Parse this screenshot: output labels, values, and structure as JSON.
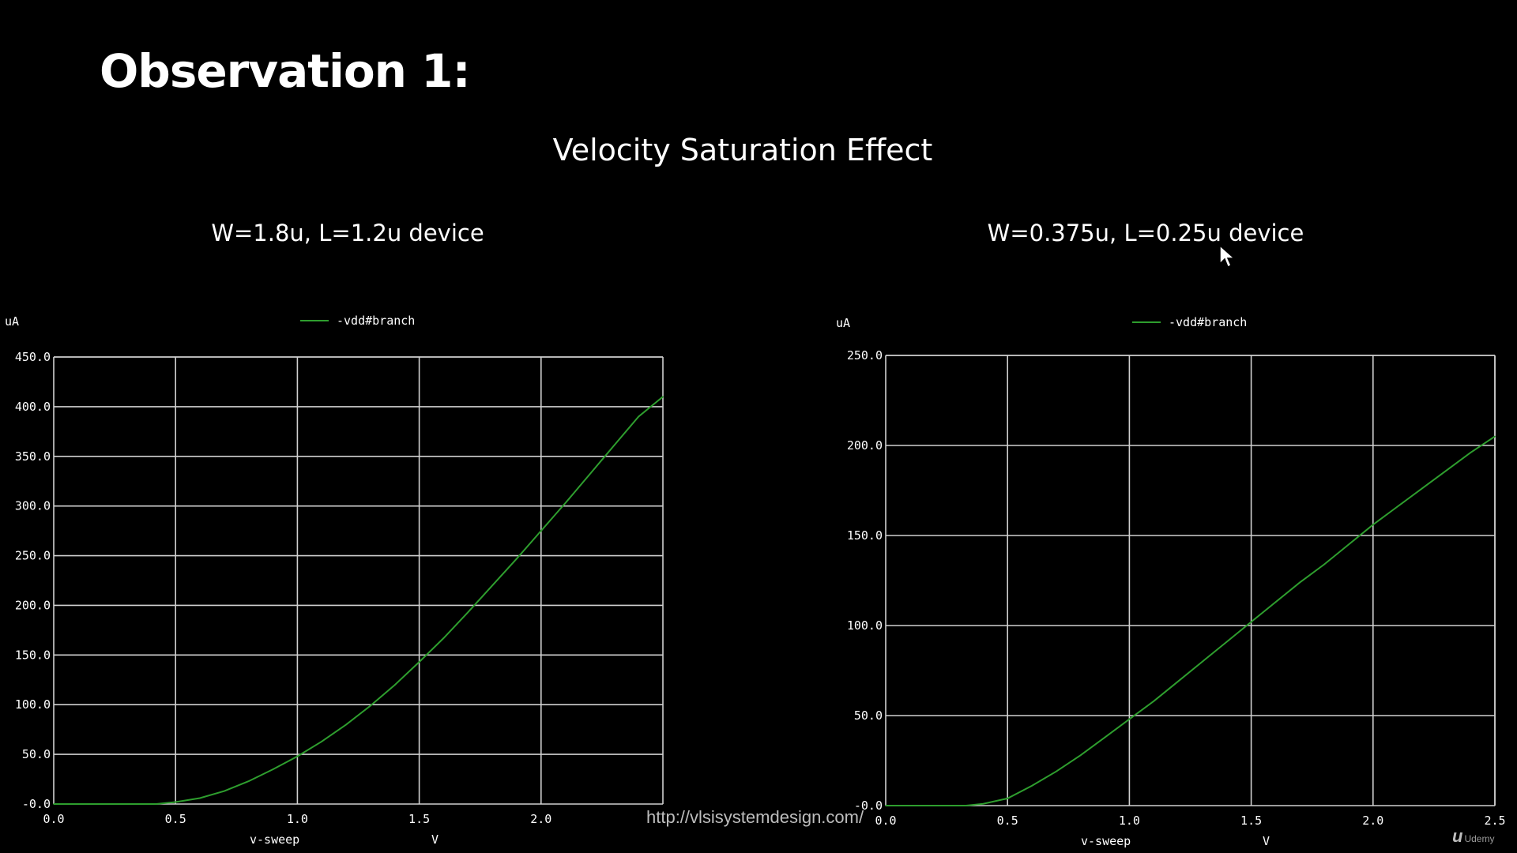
{
  "slide": {
    "title": "Observation 1:",
    "subtitle": "Velocity Saturation Effect",
    "watermark": "http://vlsisystemdesign.com/",
    "logo_text": "Udemy"
  },
  "colors": {
    "background": "#000000",
    "grid": "#d0d0d0",
    "trace": "#2e9e2e",
    "text": "#ffffff"
  },
  "chart_data": [
    {
      "type": "line",
      "title": "W=1.8u, L=1.2u device",
      "xlabel": "v-sweep",
      "xunit": "V",
      "yunit": "uA",
      "xlim": [
        0.0,
        2.5
      ],
      "ylim": [
        0.0,
        450.0
      ],
      "xticks": [
        "0.0",
        "0.5",
        "1.0",
        "1.5",
        "2.0"
      ],
      "yticks": [
        "-0.0",
        "50.0",
        "100.0",
        "150.0",
        "200.0",
        "250.0",
        "300.0",
        "350.0",
        "400.0",
        "450.0"
      ],
      "grid": true,
      "legend_position": "top",
      "series": [
        {
          "name": "-vdd#branch",
          "x": [
            0.0,
            0.3,
            0.42,
            0.5,
            0.6,
            0.7,
            0.8,
            0.9,
            1.0,
            1.1,
            1.2,
            1.3,
            1.4,
            1.5,
            1.6,
            1.7,
            1.8,
            1.9,
            2.0,
            2.1,
            2.2,
            2.3,
            2.4,
            2.5
          ],
          "y": [
            0,
            0,
            0,
            2,
            6,
            13,
            23,
            35,
            48,
            63,
            80,
            99,
            120,
            143,
            167,
            193,
            220,
            247,
            275,
            303,
            332,
            361,
            390,
            410
          ]
        }
      ]
    },
    {
      "type": "line",
      "title": "W=0.375u, L=0.25u device",
      "xlabel": "v-sweep",
      "xunit": "V",
      "yunit": "uA",
      "xlim": [
        0.0,
        2.5
      ],
      "ylim": [
        0.0,
        250.0
      ],
      "xticks": [
        "0.0",
        "0.5",
        "1.0",
        "1.5",
        "2.0",
        "2.5"
      ],
      "yticks": [
        "-0.0",
        "50.0",
        "100.0",
        "150.0",
        "200.0",
        "250.0"
      ],
      "grid": true,
      "legend_position": "top",
      "series": [
        {
          "name": "-vdd#branch",
          "x": [
            0.0,
            0.3,
            0.33,
            0.4,
            0.5,
            0.6,
            0.7,
            0.8,
            0.9,
            1.0,
            1.1,
            1.2,
            1.3,
            1.4,
            1.5,
            1.6,
            1.7,
            1.8,
            1.9,
            2.0,
            2.1,
            2.2,
            2.3,
            2.4,
            2.5
          ],
          "y": [
            0,
            0,
            0,
            1,
            4,
            11,
            19,
            28,
            38,
            48,
            58,
            69,
            80,
            91,
            102,
            113,
            124,
            134,
            145,
            156,
            166,
            176,
            186,
            196,
            205
          ]
        }
      ]
    }
  ]
}
